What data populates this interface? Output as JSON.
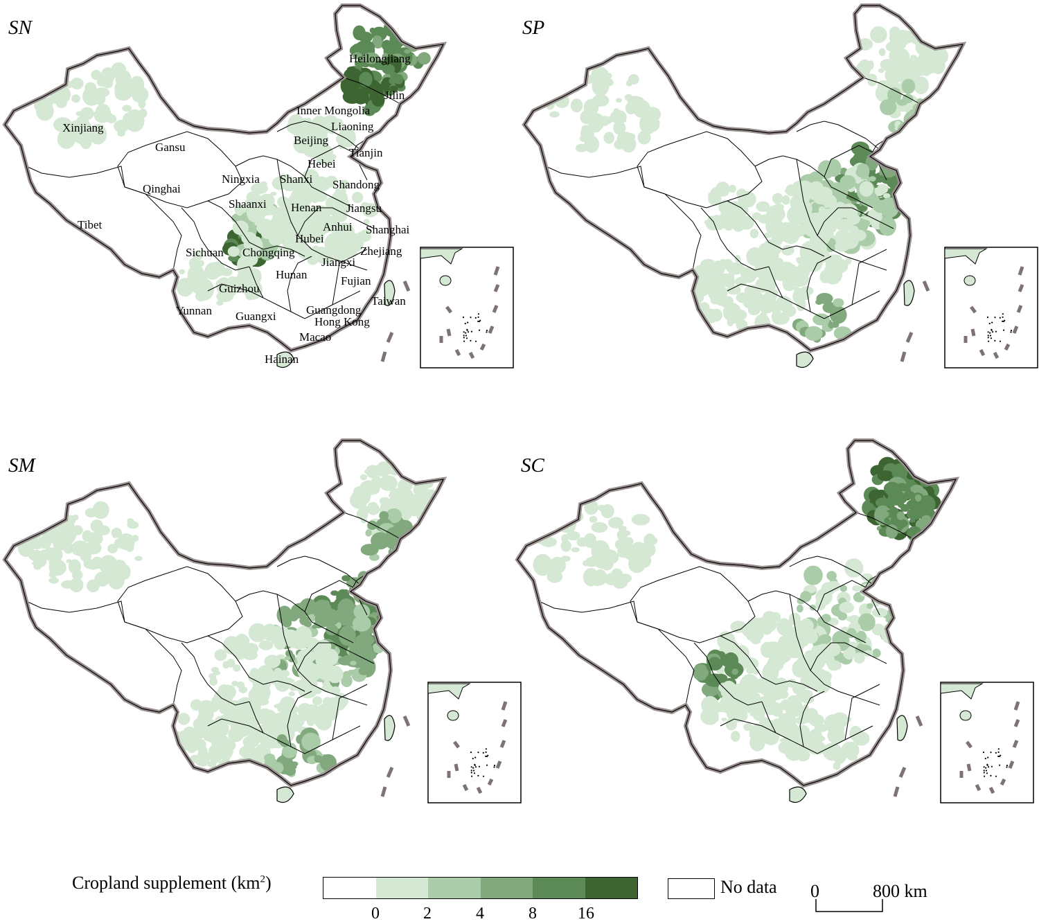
{
  "panels": [
    {
      "id": "SN",
      "label": "SN"
    },
    {
      "id": "SP",
      "label": "SP"
    },
    {
      "id": "SM",
      "label": "SM"
    },
    {
      "id": "SC",
      "label": "SC"
    }
  ],
  "provinces": [
    "Heilongjiang",
    "Jilin",
    "Inner Mongolia",
    "Liaoning",
    "Xinjiang",
    "Gansu",
    "Beijing",
    "Tianjin",
    "Hebei",
    "Qinghai",
    "Ningxia",
    "Shanxi",
    "Shandong",
    "Shaanxi",
    "Henan",
    "Jiangsu",
    "Tibet",
    "Anhui",
    "Shanghai",
    "Hubei",
    "Sichuan",
    "Chongqing",
    "Zhejiang",
    "Jiangxi",
    "Hunan",
    "Guizhou",
    "Fujian",
    "Taiwan",
    "Yunnan",
    "Guangdong",
    "Guangxi",
    "Hong Kong",
    "Macao",
    "Hainan"
  ],
  "legend": {
    "title": "Cropland supplement (km",
    "title_sup": "2",
    "title_end": ")",
    "tick_labels": [
      "0",
      "2",
      "4",
      "8",
      "16"
    ],
    "colors": [
      "#ffffff",
      "#d5e8d4",
      "#aacca8",
      "#81a97d",
      "#5c8a56",
      "#3d6532"
    ],
    "no_data_label": "No data"
  },
  "scale_bar": {
    "start": "0",
    "end": "800 km"
  }
}
